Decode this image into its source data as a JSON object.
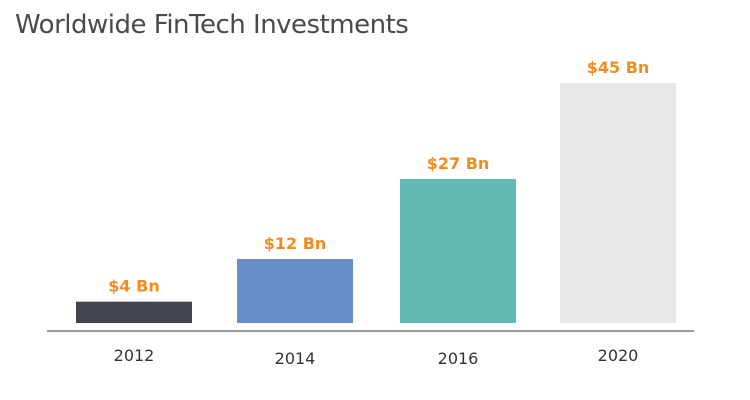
{
  "title": "Worldwide FinTech Investments",
  "colors": {
    "title": "#4a4a4a",
    "value_label": "#f28c1c",
    "axis": "#7a7a7a",
    "tick_label": "#333333"
  },
  "chart_data": {
    "type": "bar",
    "title": "Worldwide FinTech Investments",
    "xlabel": "",
    "ylabel": "",
    "ylim": [
      0,
      48
    ],
    "grid": false,
    "categories": [
      "2012",
      "2014",
      "2016",
      "2020"
    ],
    "values": [
      4,
      12,
      27,
      45
    ],
    "data_labels": [
      "$4 Bn",
      "$12 Bn",
      "$27 Bn",
      "$45 Bn"
    ],
    "bar_colors": [
      "#41454c",
      "#6a8ec8",
      "#62b8b5",
      "#e6e7e8"
    ]
  }
}
